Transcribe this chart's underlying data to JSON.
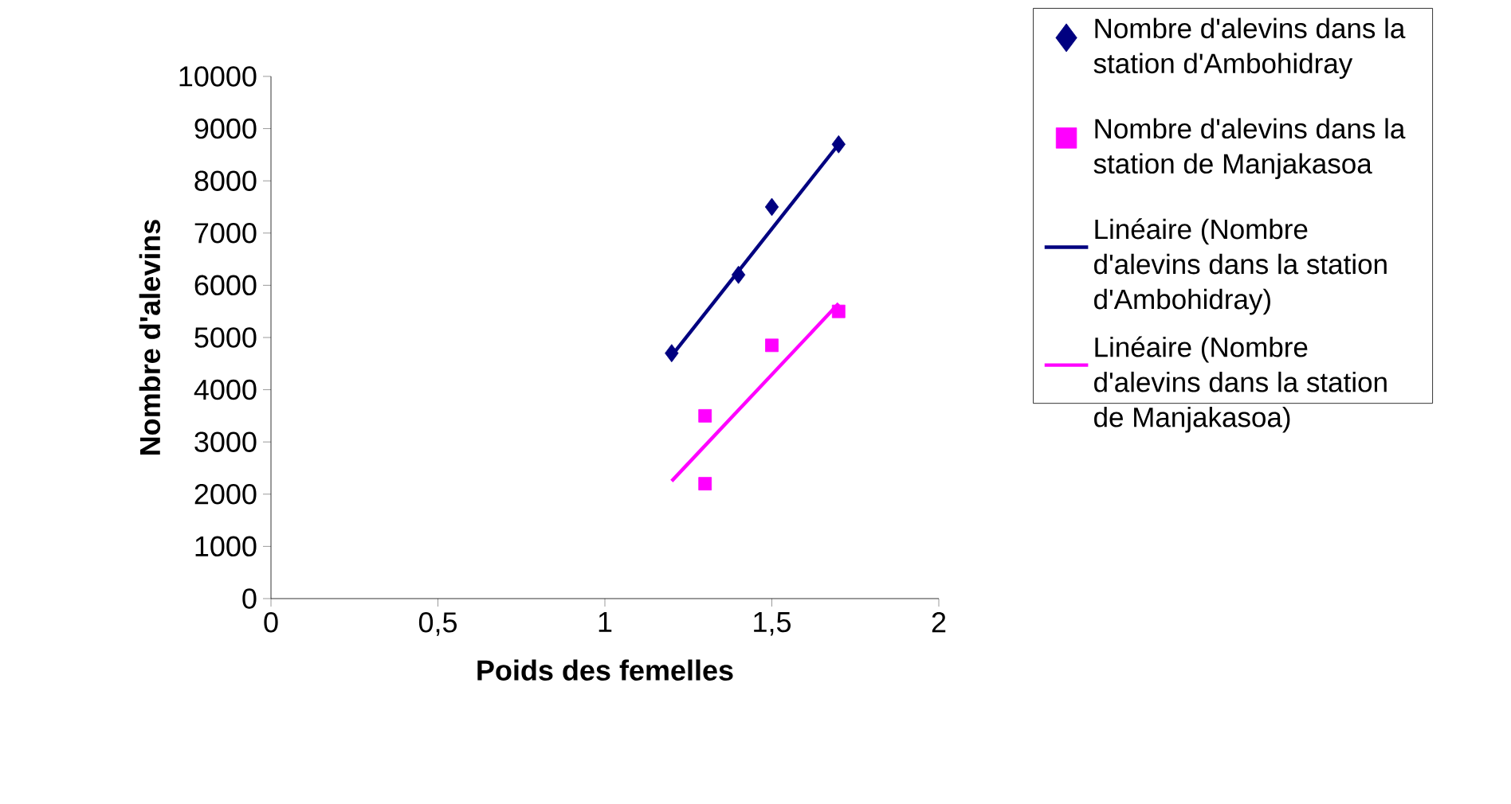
{
  "chart_data": {
    "type": "scatter",
    "xlabel": "Poids des femelles",
    "ylabel": "Nombre d'alevins",
    "xlim": [
      0,
      2
    ],
    "xticks": [
      0,
      {
        "value": 0.5,
        "label": "0,5"
      },
      1,
      {
        "value": 1.5,
        "label": "1,5"
      },
      2
    ],
    "ylim": [
      0,
      10000
    ],
    "yticks": [
      0,
      1000,
      2000,
      3000,
      4000,
      5000,
      6000,
      7000,
      8000,
      9000,
      10000
    ],
    "legend": "right",
    "grid": false,
    "series": [
      {
        "name": "Nombre d'alevins dans la station d'Ambohidray",
        "marker": "diamond",
        "color": "#000080",
        "x": [
          1.2,
          1.4,
          1.5,
          1.7
        ],
        "values": [
          4700,
          6200,
          7500,
          8700
        ]
      },
      {
        "name": "Nombre d'alevins dans la station de Manjakasoa",
        "marker": "square",
        "color": "#ff00ff",
        "x": [
          1.3,
          1.3,
          1.5,
          1.7
        ],
        "values": [
          3500,
          2200,
          4850,
          5500
        ]
      },
      {
        "name": "Linéaire (Nombre d'alevins dans la station d'Ambohidray)",
        "type": "line",
        "marker": "none",
        "color": "#000080",
        "x": [
          1.2,
          1.7
        ],
        "values": [
          4650,
          8700
        ]
      },
      {
        "name": "Linéaire (Nombre d'alevins dans la station de Manjakasoa)",
        "type": "line",
        "marker": "none",
        "color": "#ff00ff",
        "x": [
          1.2,
          1.7
        ],
        "values": [
          2250,
          5650
        ]
      }
    ]
  }
}
